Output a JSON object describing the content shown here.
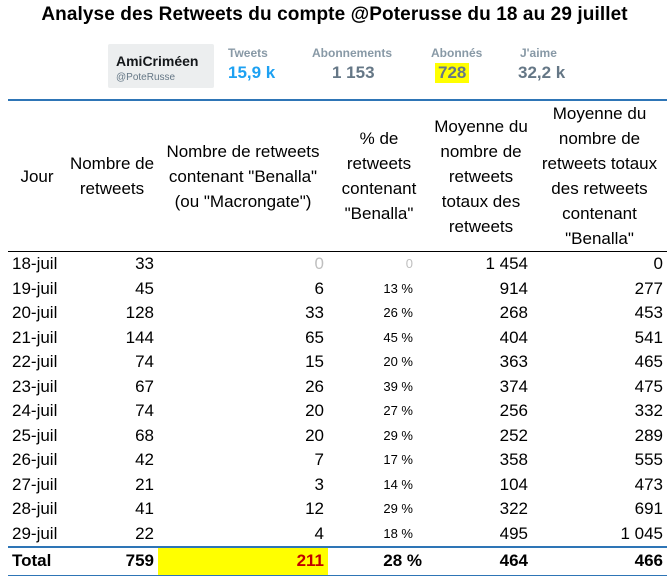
{
  "title": "Analyse des Retweets du compte @Poterusse du 18 au 29 juillet",
  "profile": {
    "name": "AmiCriméen",
    "handle": "@PoteRusse"
  },
  "stats": [
    {
      "label": "Tweets",
      "value": "15,9 k"
    },
    {
      "label": "Abonnements",
      "value": "1 153"
    },
    {
      "label": "Abonnés",
      "value": "728"
    },
    {
      "label": "J'aime",
      "value": "32,2 k"
    }
  ],
  "table": {
    "headers": [
      "Jour",
      "Nombre de retweets",
      "Nombre de retweets contenant \"Benalla\" (ou \"Macrongate\")",
      "% de retweets contenant \"Benalla\"",
      "Moyenne du nombre de retweets totaux des retweets",
      "Moyenne du nombre de retweets totaux des retweets contenant \"Benalla\""
    ],
    "rows": [
      [
        "18-juil",
        "33",
        "0",
        "0",
        "1 454",
        "0"
      ],
      [
        "19-juil",
        "45",
        "6",
        "13 %",
        "914",
        "277"
      ],
      [
        "20-juil",
        "128",
        "33",
        "26 %",
        "268",
        "453"
      ],
      [
        "21-juil",
        "144",
        "65",
        "45 %",
        "404",
        "541"
      ],
      [
        "22-juil",
        "74",
        "15",
        "20 %",
        "363",
        "465"
      ],
      [
        "23-juil",
        "67",
        "26",
        "39 %",
        "374",
        "475"
      ],
      [
        "24-juil",
        "74",
        "20",
        "27 %",
        "256",
        "332"
      ],
      [
        "25-juil",
        "68",
        "20",
        "29 %",
        "252",
        "289"
      ],
      [
        "26-juil",
        "42",
        "7",
        "17 %",
        "358",
        "555"
      ],
      [
        "27-juil",
        "21",
        "3",
        "14 %",
        "104",
        "473"
      ],
      [
        "28-juil",
        "41",
        "12",
        "29 %",
        "322",
        "691"
      ],
      [
        "29-juil",
        "22",
        "4",
        "18 %",
        "495",
        "1 045"
      ]
    ],
    "total": [
      "Total",
      "759",
      "211",
      "28 %",
      "464",
      "466"
    ]
  },
  "colors": {
    "highlight": "#ffff00",
    "total_highlight_text": "#c00000",
    "rule": "#2e75b6",
    "twitter_blue": "#1da1f2"
  }
}
